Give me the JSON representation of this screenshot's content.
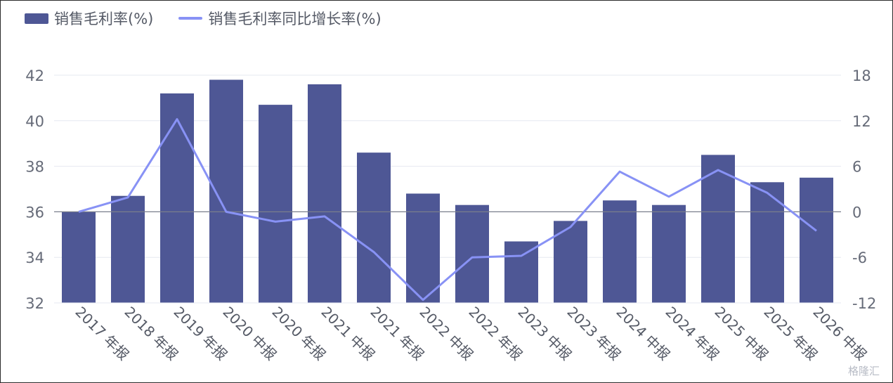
{
  "legend": {
    "bar_label": "销售毛利率(%)",
    "line_label": "销售毛利率同比增长率(%)"
  },
  "watermark": "格隆汇",
  "colors": {
    "bar": "#4e5795",
    "line": "#8892f5",
    "grid": "#e6e8f0",
    "zero_line": "#7a7f8c"
  },
  "chart_data": {
    "type": "bar",
    "categories": [
      "2017 年报",
      "2018 年报",
      "2019 年报",
      "2020 中报",
      "2020 年报",
      "2021 中报",
      "2021 年报",
      "2022 中报",
      "2022 年报",
      "2023 中报",
      "2023 年报",
      "2024 中报",
      "2024 年报",
      "2025 中报",
      "2025 年报",
      "2026 中报"
    ],
    "series": [
      {
        "name": "销售毛利率(%)",
        "type": "bar",
        "axis": "left",
        "values": [
          36.0,
          36.7,
          41.2,
          41.8,
          40.7,
          41.6,
          38.6,
          36.8,
          36.3,
          34.7,
          35.6,
          36.5,
          36.3,
          38.5,
          37.3,
          37.5
        ]
      },
      {
        "name": "销售毛利率同比增长率(%)",
        "type": "line",
        "axis": "right",
        "values": [
          0.0,
          1.9,
          12.2,
          0.0,
          -1.3,
          -0.6,
          -5.3,
          -11.6,
          -6.0,
          -5.8,
          -2.0,
          5.3,
          2.0,
          5.5,
          2.5,
          -2.5
        ]
      }
    ],
    "ylim_left": [
      32,
      42
    ],
    "yticks_left": [
      "32",
      "34",
      "36",
      "38",
      "40",
      "42"
    ],
    "ylim_right": [
      -12,
      18
    ],
    "yticks_right": [
      "-12",
      "-6",
      "0",
      "6",
      "12",
      "18"
    ],
    "grid": true,
    "legend_position": "top-left"
  }
}
